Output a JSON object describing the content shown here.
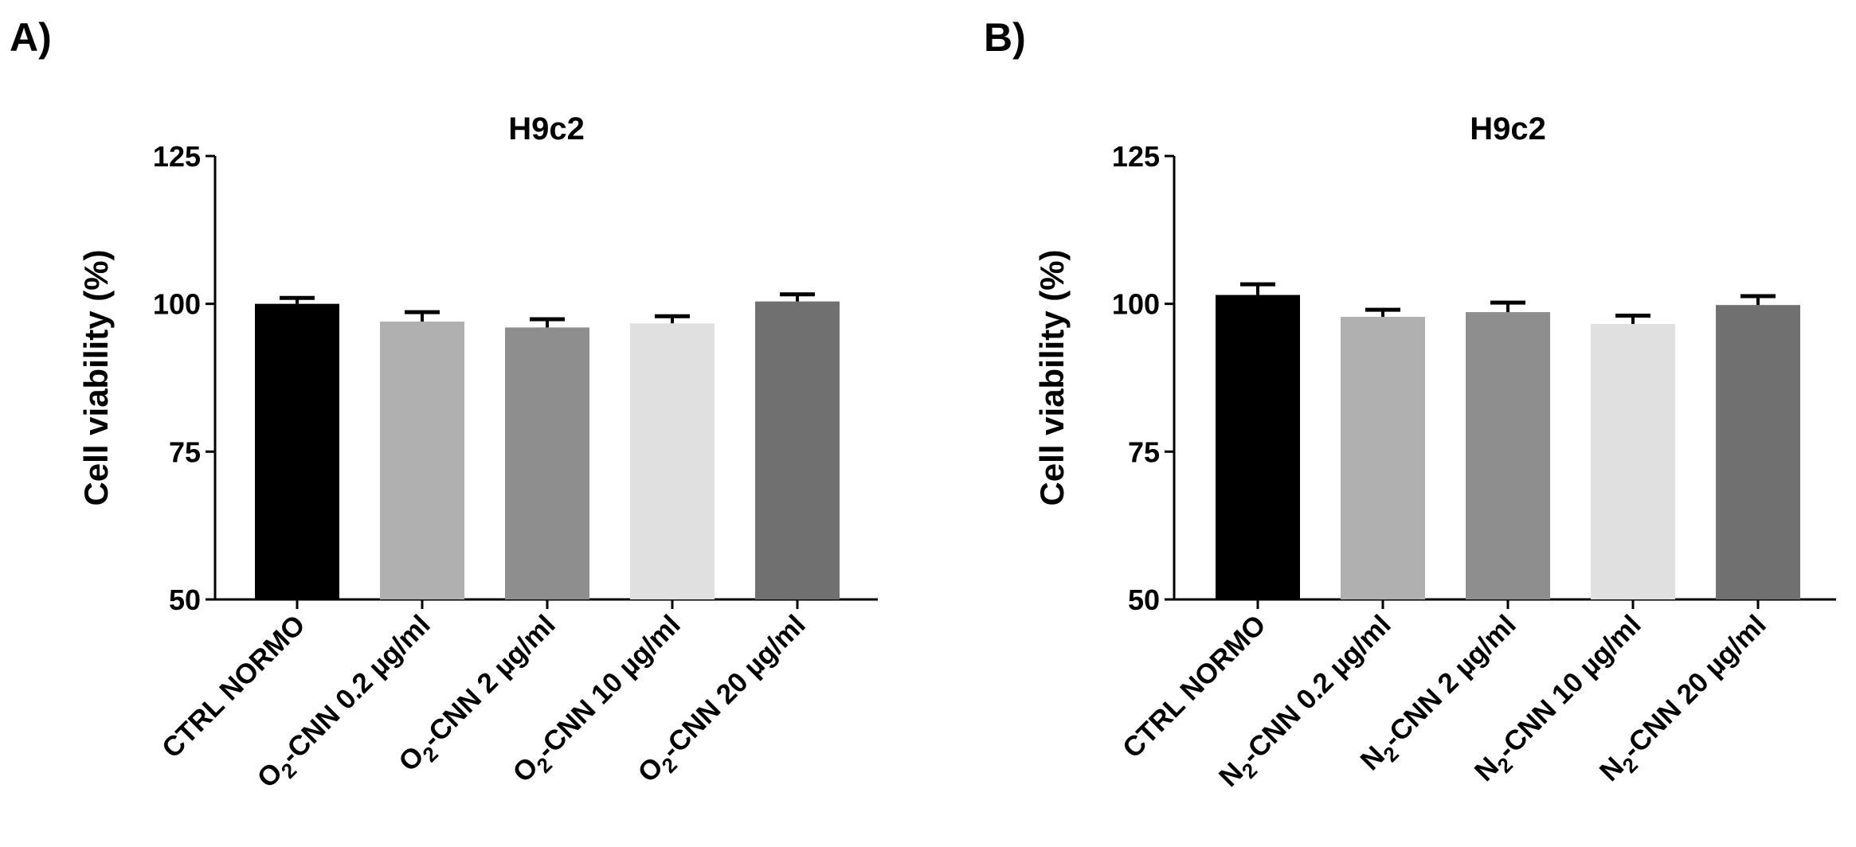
{
  "panels": [
    {
      "letter": "A)",
      "chart_data": {
        "type": "bar",
        "title": "H9c2",
        "xlabel": "",
        "ylabel": "Cell viability (%)",
        "ylim": [
          50,
          125
        ],
        "yticks": [
          "50",
          "75",
          "100",
          "125"
        ],
        "grid": false,
        "categories": [
          {
            "prefix": "",
            "sub": "",
            "suffix": "CTRL NORMO"
          },
          {
            "prefix": "O",
            "sub": "2",
            "suffix": "-CNN 0.2 µg/ml"
          },
          {
            "prefix": "O",
            "sub": "2",
            "suffix": "-CNN 2 µg/ml"
          },
          {
            "prefix": "O",
            "sub": "2",
            "suffix": "-CNN 10 µg/ml"
          },
          {
            "prefix": "O",
            "sub": "2",
            "suffix": "-CNN 20 µg/ml"
          }
        ],
        "values": [
          100.0,
          97.0,
          96.0,
          96.7,
          100.4
        ],
        "errors": [
          1.0,
          1.6,
          1.4,
          1.2,
          1.2
        ],
        "colors": [
          "#000000",
          "#b0b0b0",
          "#8e8e8e",
          "#e0e0e0",
          "#707070"
        ]
      }
    },
    {
      "letter": "B)",
      "chart_data": {
        "type": "bar",
        "title": "H9c2",
        "xlabel": "",
        "ylabel": "Cell viability (%)",
        "ylim": [
          50,
          125
        ],
        "yticks": [
          "50",
          "75",
          "100",
          "125"
        ],
        "grid": false,
        "categories": [
          {
            "prefix": "",
            "sub": "",
            "suffix": "CTRL NORMO"
          },
          {
            "prefix": "N",
            "sub": "2",
            "suffix": "-CNN 0.2 µg/ml"
          },
          {
            "prefix": "N",
            "sub": "2",
            "suffix": "-CNN 2 µg/ml"
          },
          {
            "prefix": "N",
            "sub": "2",
            "suffix": "-CNN 10 µg/ml"
          },
          {
            "prefix": "N",
            "sub": "2",
            "suffix": "-CNN 20 µg/ml"
          }
        ],
        "values": [
          101.5,
          97.8,
          98.6,
          96.6,
          99.8
        ],
        "errors": [
          1.8,
          1.2,
          1.6,
          1.4,
          1.5
        ],
        "colors": [
          "#000000",
          "#b0b0b0",
          "#8e8e8e",
          "#e0e0e0",
          "#707070"
        ]
      }
    }
  ]
}
